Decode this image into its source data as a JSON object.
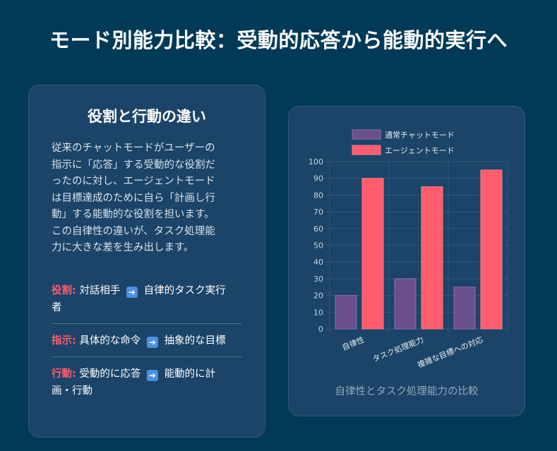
{
  "page": {
    "title": "モード別能力比較：受動的応答から能動的実行へ"
  },
  "left_card": {
    "title": "役割と行動の違い",
    "description_lines": [
      "従来のチャットモードがユーザーの",
      "指示に「応答」する受動的な役割だ",
      "ったのに対し、エージェントモード",
      "は目標達成のために自ら「計画し行",
      "動」する能動的な役割を担います。",
      "この自律性の違いが、タスク処理能",
      "力に大きな差を生み出します。"
    ],
    "items": [
      {
        "label": "役割:",
        "from": "対話相手",
        "to_lines": [
          "自律的タスク実行",
          "者"
        ],
        "arrow_icon": "right-arrow-icon"
      },
      {
        "label": "指示:",
        "from": "具体的な命令",
        "to_lines": [
          "抽象的な目標"
        ],
        "arrow_icon": "right-arrow-icon"
      },
      {
        "label": "行動:",
        "from": "受動的に応答",
        "to_lines": [
          "能動的に計",
          "画・行動"
        ],
        "arrow_icon": "right-arrow-icon"
      }
    ]
  },
  "chart_caption": "自律性とタスク処理能力の比較",
  "chart_data": {
    "type": "bar",
    "title": "",
    "xlabel": "",
    "ylabel": "",
    "categories": [
      "自律性",
      "タスク処理能力",
      "複雑な目標への対応"
    ],
    "series": [
      {
        "name": "通常チャットモード",
        "values": [
          20,
          30,
          25
        ],
        "color": "#6a4f8c"
      },
      {
        "name": "エージェントモード",
        "values": [
          90,
          85,
          95
        ],
        "color": "#ff5d6c"
      }
    ],
    "ylim": [
      0,
      100
    ],
    "yticks": [
      0,
      10,
      20,
      30,
      40,
      50,
      60,
      70,
      80,
      90,
      100
    ],
    "grid": true,
    "legend_position": "top"
  }
}
